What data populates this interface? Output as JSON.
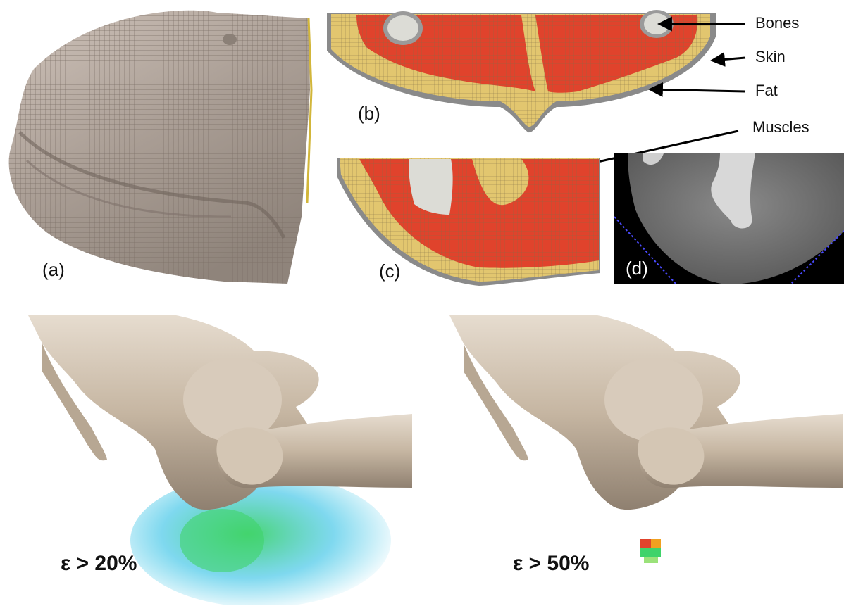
{
  "panels": {
    "a": {
      "label": "(a)"
    },
    "b": {
      "label": "(b)"
    },
    "c": {
      "label": "(c)"
    },
    "d": {
      "label": "(d)"
    }
  },
  "callouts": {
    "bones": "Bones",
    "skin": "Skin",
    "fat": "Fat",
    "muscles": "Muscles"
  },
  "strain": {
    "left": "ε > 20%",
    "right": "ε > 50%"
  },
  "colors": {
    "skin_mesh": "#b9ada3",
    "muscle": "#e0432c",
    "fat": "#e2c66f",
    "bone": "#d8d8d8",
    "ct_background": "#000000",
    "bone_model": "#c9b9a5",
    "strain_green": "#3fd36a",
    "strain_cyan": "#48c8e8"
  }
}
